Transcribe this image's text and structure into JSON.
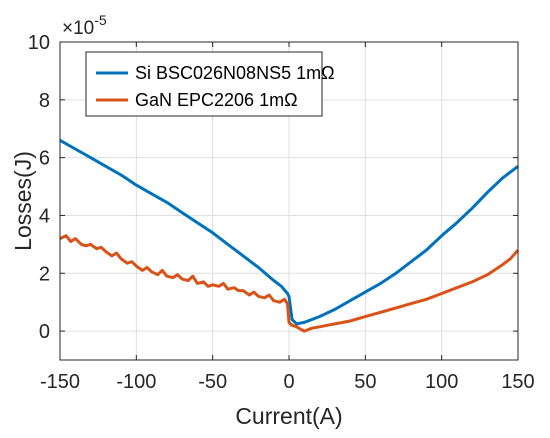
{
  "chart_data": {
    "type": "line",
    "xlabel": "Current(A)",
    "ylabel": "Losses(J)",
    "xlim": [
      -150,
      150
    ],
    "ylim": [
      -1,
      10
    ],
    "xticks": [
      -150,
      -100,
      -50,
      0,
      50,
      100,
      150
    ],
    "yticks": [
      0,
      2,
      4,
      6,
      8,
      10
    ],
    "xtick_labels": [
      "-150",
      "-100",
      "-50",
      "0",
      "50",
      "100",
      "150"
    ],
    "ytick_labels": [
      "0",
      "2",
      "4",
      "6",
      "8",
      "10"
    ],
    "y_multiplier": {
      "base": "×10",
      "exponent": "-5"
    },
    "grid": true,
    "legend_position": "top-left",
    "series": [
      {
        "name": "Si BSC026N08NS5 1mΩ",
        "color": "#0072BD",
        "x": [
          -150,
          -140,
          -130,
          -120,
          -110,
          -100,
          -90,
          -80,
          -70,
          -60,
          -50,
          -40,
          -30,
          -20,
          -10,
          -5,
          -1,
          0,
          2,
          5,
          10,
          20,
          30,
          40,
          50,
          60,
          70,
          80,
          90,
          100,
          110,
          120,
          130,
          140,
          150
        ],
        "y": [
          6.6,
          6.3,
          6.0,
          5.7,
          5.4,
          5.05,
          4.75,
          4.45,
          4.1,
          3.75,
          3.4,
          3.0,
          2.6,
          2.2,
          1.75,
          1.55,
          1.3,
          1.2,
          0.4,
          0.25,
          0.3,
          0.5,
          0.75,
          1.05,
          1.35,
          1.65,
          2.0,
          2.4,
          2.8,
          3.3,
          3.75,
          4.25,
          4.8,
          5.3,
          5.7
        ]
      },
      {
        "name": "GaN EPC2206 1mΩ",
        "color": "#D95319",
        "x": [
          -150,
          -146,
          -143,
          -140,
          -136,
          -133,
          -130,
          -126,
          -123,
          -120,
          -116,
          -113,
          -110,
          -106,
          -103,
          -100,
          -96,
          -93,
          -90,
          -86,
          -83,
          -80,
          -76,
          -73,
          -70,
          -66,
          -63,
          -60,
          -56,
          -53,
          -50,
          -46,
          -43,
          -40,
          -36,
          -33,
          -30,
          -26,
          -23,
          -20,
          -16,
          -13,
          -10,
          -6,
          -3,
          -1,
          0,
          2,
          5,
          8,
          10,
          15,
          20,
          30,
          40,
          50,
          60,
          70,
          80,
          90,
          100,
          110,
          120,
          130,
          140,
          145,
          150
        ],
        "y": [
          3.2,
          3.3,
          3.1,
          3.2,
          3.0,
          2.95,
          3.0,
          2.85,
          2.9,
          2.75,
          2.6,
          2.7,
          2.5,
          2.35,
          2.4,
          2.25,
          2.1,
          2.2,
          2.05,
          1.95,
          2.1,
          1.9,
          1.85,
          1.95,
          1.8,
          1.75,
          1.9,
          1.65,
          1.7,
          1.55,
          1.6,
          1.55,
          1.65,
          1.45,
          1.5,
          1.4,
          1.4,
          1.25,
          1.35,
          1.2,
          1.15,
          1.25,
          1.05,
          1.0,
          1.1,
          0.95,
          0.3,
          0.2,
          0.15,
          0.05,
          0.0,
          0.1,
          0.15,
          0.25,
          0.35,
          0.5,
          0.65,
          0.8,
          0.95,
          1.1,
          1.3,
          1.5,
          1.7,
          1.95,
          2.3,
          2.5,
          2.8
        ]
      }
    ]
  }
}
